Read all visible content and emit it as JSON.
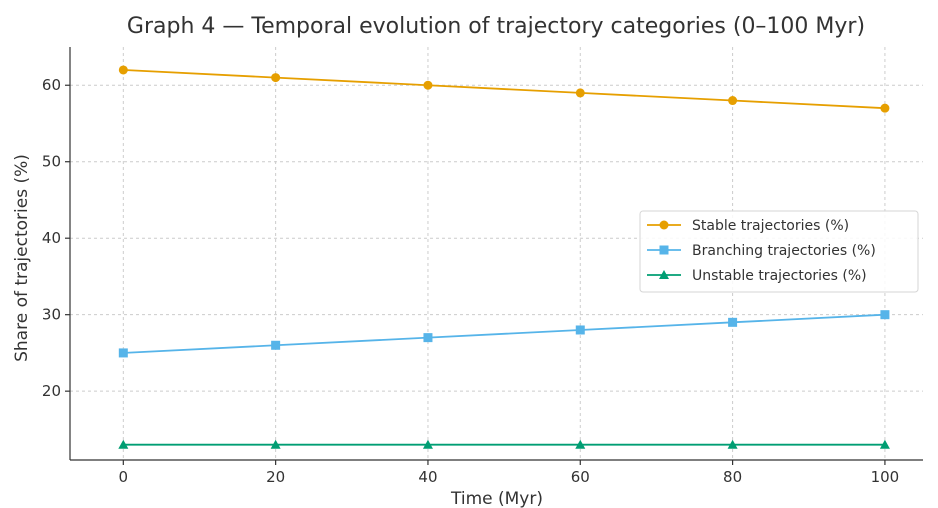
{
  "chart_data": {
    "type": "line",
    "title": "Graph 4 — Temporal evolution of trajectory categories (0–100 Myr)",
    "xlabel": "Time (Myr)",
    "ylabel": "Share of trajectories (%)",
    "x": [
      0,
      20,
      40,
      60,
      80,
      100
    ],
    "xlim": [
      -7,
      105
    ],
    "ylim": [
      11,
      65
    ],
    "xticks": [
      0,
      20,
      40,
      60,
      80,
      100
    ],
    "yticks": [
      20,
      30,
      40,
      50,
      60
    ],
    "grid": true,
    "legend_position": "center-right",
    "series": [
      {
        "name": "Stable trajectories (%)",
        "values": [
          62,
          61,
          60,
          59,
          58,
          57
        ],
        "color": "#E69F00",
        "marker": "circle"
      },
      {
        "name": "Branching trajectories (%)",
        "values": [
          25,
          26,
          27,
          28,
          29,
          30
        ],
        "color": "#56B4E9",
        "marker": "square"
      },
      {
        "name": "Unstable trajectories (%)",
        "values": [
          13,
          13,
          13,
          13,
          13,
          13
        ],
        "color": "#009E73",
        "marker": "triangle"
      }
    ]
  }
}
